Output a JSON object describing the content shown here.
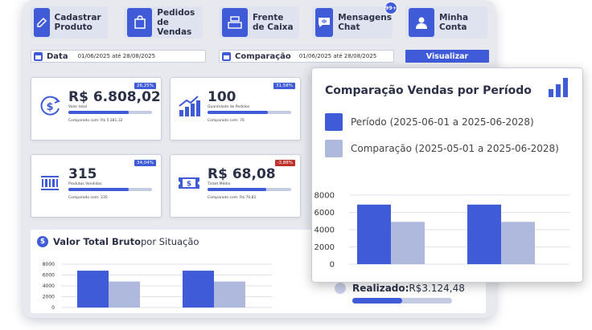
{
  "nav": [
    {
      "label": "Cadastrar Produto",
      "icon": "edit-icon"
    },
    {
      "label": "Pedidos de Vendas",
      "icon": "shopping-bag-icon"
    },
    {
      "label": "Frente de Caixa",
      "icon": "cash-register-icon"
    },
    {
      "label": "Mensagens Chat",
      "icon": "chat-icon",
      "badge": "99+"
    },
    {
      "label": "Minha Conta",
      "icon": "user-icon"
    }
  ],
  "filters": {
    "date_label": "Data",
    "date_range": "01/06/2025 até   28/08/2025",
    "compare_label": "Comparação",
    "compare_range": "01/06/2025 até   28/08/2025",
    "submit_label": "Visualizar"
  },
  "cards": [
    {
      "value": "R$ 6.808,02",
      "label": "Valor total",
      "badge": "26,25%",
      "compare": "Comparado com: R$ 5.381,32",
      "progress": 0.72,
      "icon": "dollar-refresh-icon"
    },
    {
      "value": "100",
      "label": "Quantidade de Pedidos",
      "badge": "31,58%",
      "compare": "Comparado com: 76",
      "progress": 0.72,
      "icon": "growth-chart-icon"
    },
    {
      "value": "315",
      "label": "Produtos Vendidos",
      "badge": "34,04%",
      "compare": "Comparado com: 235",
      "progress": 0.72,
      "icon": "barcode-icon"
    },
    {
      "value": "R$ 68,08",
      "label": "Ticket Médio",
      "badge": "-3,88%",
      "badge_negative": true,
      "compare": "Comparado com: R$ 70,81",
      "progress": 0.7,
      "icon": "ticket-icon"
    }
  ],
  "bottom": {
    "title_bold": "Valor Total Bruto",
    "title_rest": " por Situação",
    "status_label": "Realizado:",
    "status_value": " R$3.124,48",
    "status_progress": 0.5
  },
  "popup": {
    "title": "Comparação Vendas por Período",
    "legend": [
      {
        "label": "Período (2025-06-01 a 2025-06-2028)",
        "color": "#3f5bd8"
      },
      {
        "label": "Comparação (2025-05-01 a 2025-06-2028)",
        "color": "#aeb9dd"
      }
    ]
  },
  "colors": {
    "primary": "#3f5bd8",
    "secondary": "#aeb9dd",
    "negative": "#c0302a"
  },
  "chart_data": [
    {
      "type": "bar",
      "title": "Comparação Vendas por Período",
      "categories": [
        "",
        ""
      ],
      "series": [
        {
          "name": "Período (2025-06-01 a 2025-06-2028)",
          "values": [
            6900,
            6900
          ]
        },
        {
          "name": "Comparação (2025-05-01 a 2025-06-2028)",
          "values": [
            4900,
            4900
          ]
        }
      ],
      "ylim": [
        0,
        8000
      ],
      "yticks": [
        "8000",
        "6000",
        "4000",
        "2000",
        "0"
      ],
      "grid": true
    },
    {
      "type": "bar",
      "title": "Valor Total Bruto por Situação",
      "categories": [
        "",
        ""
      ],
      "series": [
        {
          "values": [
            6800,
            6800
          ]
        },
        {
          "values": [
            4800,
            4800
          ]
        }
      ],
      "ylim": [
        0,
        8000
      ],
      "yticks": [
        "8000",
        "6000",
        "4000",
        "2000",
        "0"
      ],
      "grid": true
    }
  ]
}
